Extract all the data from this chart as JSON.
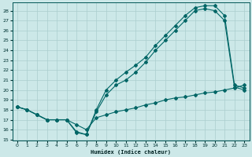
{
  "xlabel": "Humidex (Indice chaleur)",
  "background_color": "#cce8e8",
  "grid_color": "#aacece",
  "line_color": "#006666",
  "xlim": [
    -0.5,
    23.5
  ],
  "ylim": [
    14.9,
    28.8
  ],
  "yticks": [
    15,
    16,
    17,
    18,
    19,
    20,
    21,
    22,
    23,
    24,
    25,
    26,
    27,
    28
  ],
  "xticks": [
    0,
    1,
    2,
    3,
    4,
    5,
    6,
    7,
    8,
    9,
    10,
    11,
    12,
    13,
    14,
    15,
    16,
    17,
    18,
    19,
    20,
    21,
    22,
    23
  ],
  "line1_x": [
    0,
    1,
    2,
    3,
    4,
    5,
    6,
    7,
    8,
    9,
    10,
    11,
    12,
    13,
    14,
    15,
    16,
    17,
    18,
    19,
    20,
    21,
    22,
    23
  ],
  "line1_y": [
    18.3,
    18.0,
    17.5,
    17.0,
    17.0,
    17.0,
    15.7,
    15.5,
    18.0,
    20.0,
    21.0,
    21.8,
    22.5,
    23.3,
    24.5,
    25.5,
    26.5,
    27.5,
    28.3,
    28.5,
    28.5,
    27.5,
    20.5,
    20.2
  ],
  "line2_x": [
    0,
    1,
    2,
    3,
    4,
    5,
    6,
    7,
    8,
    9,
    10,
    11,
    12,
    13,
    14,
    15,
    16,
    17,
    18,
    19,
    20,
    21,
    22,
    23
  ],
  "line2_y": [
    18.3,
    18.0,
    17.5,
    17.0,
    17.0,
    17.0,
    15.8,
    15.5,
    17.8,
    19.5,
    20.5,
    21.0,
    21.8,
    22.8,
    24.0,
    25.0,
    26.0,
    27.0,
    28.0,
    28.2,
    28.0,
    27.0,
    20.3,
    20.0
  ],
  "line3_x": [
    0,
    1,
    2,
    3,
    4,
    5,
    6,
    7,
    8,
    9,
    10,
    11,
    12,
    13,
    14,
    15,
    16,
    17,
    18,
    19,
    20,
    21,
    22,
    23
  ],
  "line3_y": [
    18.3,
    18.0,
    17.5,
    17.0,
    17.0,
    17.0,
    16.5,
    16.0,
    17.2,
    17.5,
    17.8,
    18.0,
    18.2,
    18.5,
    18.7,
    19.0,
    19.2,
    19.3,
    19.5,
    19.7,
    19.8,
    20.0,
    20.2,
    20.5
  ]
}
